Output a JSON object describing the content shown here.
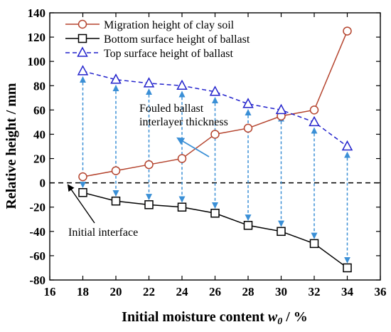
{
  "chart_data": {
    "type": "line",
    "xlabel_main": "Initial moisture content ",
    "xlabel_var": "w",
    "xlabel_sub": "0",
    "xlabel_unit": " / %",
    "ylabel": "Relative height / mm",
    "xlim": [
      16,
      36
    ],
    "ylim": [
      -80,
      140
    ],
    "xticks": [
      16,
      18,
      20,
      22,
      24,
      26,
      28,
      30,
      32,
      34,
      36
    ],
    "yticks": [
      -80,
      -60,
      -40,
      -20,
      0,
      20,
      40,
      60,
      80,
      100,
      120,
      140
    ],
    "x": [
      18,
      20,
      22,
      24,
      26,
      28,
      30,
      32,
      34
    ],
    "series": [
      {
        "name": "Migration height of clay soil",
        "values": [
          5,
          10,
          15,
          20,
          40,
          45,
          55,
          60,
          125
        ],
        "color": "#b5452f",
        "marker": "circle",
        "line": "solid"
      },
      {
        "name": "Bottom surface height of ballast",
        "values": [
          -8,
          -15,
          -18,
          -20,
          -25,
          -35,
          -40,
          -50,
          -70
        ],
        "color": "#000000",
        "marker": "square",
        "line": "solid"
      },
      {
        "name": "Top surface height of ballast",
        "values": [
          92,
          85,
          82,
          80,
          75,
          65,
          60,
          50,
          30
        ],
        "color": "#2222cc",
        "marker": "triangle",
        "line": "dashed"
      }
    ],
    "thickness_arrow_color": "#3a8fd6",
    "zero_line": true,
    "legend_position": "top-left",
    "annotations": {
      "fouled_line1": "Fouled ballast",
      "fouled_line2": "interlayer thickness",
      "initial_interface": "Initial interface"
    }
  }
}
